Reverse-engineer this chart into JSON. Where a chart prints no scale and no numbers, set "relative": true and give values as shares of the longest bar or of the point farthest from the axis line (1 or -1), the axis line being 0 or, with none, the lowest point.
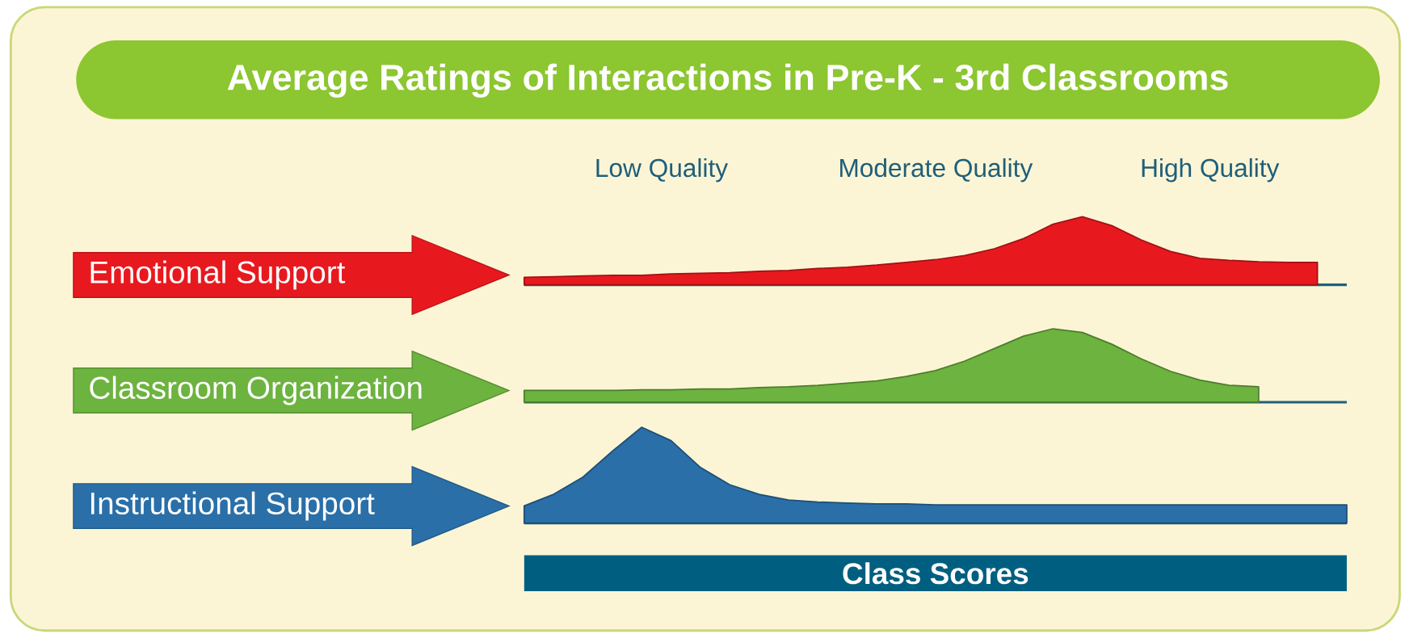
{
  "chart_data": [
    {
      "type": "area",
      "title": "Average Ratings of Interactions in Pre-K - 3rd Classrooms",
      "annotations": [
        "Low Quality",
        "Moderate Quality",
        "High Quality"
      ],
      "relative": true,
      "categories": [
        null,
        null,
        null,
        null,
        null,
        null,
        null,
        null,
        null,
        null,
        null,
        null,
        null,
        null,
        null,
        null,
        null,
        null,
        null,
        null,
        null,
        null,
        null,
        null,
        null,
        null,
        null,
        null,
        null
      ],
      "series": [
        {
          "name": "Emotional Support",
          "color": "#e8191e",
          "values": [
            0.11,
            0.12,
            0.13,
            0.14,
            0.14,
            0.16,
            0.17,
            0.18,
            0.2,
            0.21,
            0.24,
            0.26,
            0.29,
            0.33,
            0.37,
            0.43,
            0.53,
            0.68,
            0.89,
            1.0,
            0.87,
            0.66,
            0.49,
            0.39,
            0.36,
            0.34,
            0.33,
            0.33,
            null
          ]
        }
      ]
    },
    {
      "type": "area",
      "relative": true,
      "categories": [
        null,
        null,
        null,
        null,
        null,
        null,
        null,
        null,
        null,
        null,
        null,
        null,
        null,
        null,
        null,
        null,
        null,
        null,
        null,
        null,
        null,
        null,
        null,
        null,
        null,
        null,
        null,
        null,
        null
      ],
      "series": [
        {
          "name": "Classroom Organization",
          "color": "#6db33f",
          "values": [
            0.16,
            0.16,
            0.16,
            0.16,
            0.17,
            0.17,
            0.18,
            0.18,
            0.2,
            0.21,
            0.23,
            0.26,
            0.29,
            0.35,
            0.43,
            0.56,
            0.73,
            0.9,
            1.0,
            0.95,
            0.79,
            0.59,
            0.42,
            0.3,
            0.23,
            0.21,
            null,
            null,
            null
          ]
        }
      ]
    },
    {
      "type": "area",
      "relative": true,
      "xlabel": "Class Scores",
      "categories": [
        null,
        null,
        null,
        null,
        null,
        null,
        null,
        null,
        null,
        null,
        null,
        null,
        null,
        null,
        null,
        null,
        null,
        null,
        null,
        null,
        null,
        null,
        null,
        null,
        null,
        null,
        null,
        null,
        null
      ],
      "series": [
        {
          "name": "Instructional Support",
          "color": "#2a6fa8",
          "values": [
            0.18,
            0.3,
            0.48,
            0.75,
            1.0,
            0.86,
            0.58,
            0.4,
            0.3,
            0.24,
            0.22,
            0.21,
            0.2,
            0.2,
            0.19,
            0.19,
            0.19,
            0.19,
            0.19,
            0.19,
            0.19,
            0.19,
            0.19,
            0.19,
            0.19,
            0.19,
            0.19,
            0.19,
            0.19
          ]
        }
      ]
    }
  ]
}
